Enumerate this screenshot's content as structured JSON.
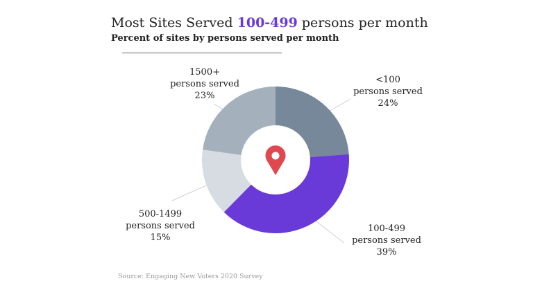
{
  "title": {
    "prefix": "Most Sites Served",
    "highlight": "100-499",
    "suffix": "persons per month",
    "highlight_color": "#6a3ad8"
  },
  "chart_data": {
    "type": "pie",
    "variant": "donut",
    "subtitle": "Percent of sites by persons served per month",
    "center_icon": "map-pin-icon",
    "slices": [
      {
        "category": "<100",
        "unit": "persons served",
        "value": 24,
        "value_label": "24%",
        "color": "#768899"
      },
      {
        "category": "100-499",
        "unit": "persons served",
        "value": 39,
        "value_label": "39%",
        "color": "#6a3ad8"
      },
      {
        "category": "500-1499",
        "unit": "persons served",
        "value": 15,
        "value_label": "15%",
        "color": "#d7dce2"
      },
      {
        "category": "1500+",
        "unit": "persons served",
        "value": 23,
        "value_label": "23%",
        "color": "#a4b1bd"
      }
    ],
    "source": "Source: Engaging New Voters 2020 Survey"
  }
}
